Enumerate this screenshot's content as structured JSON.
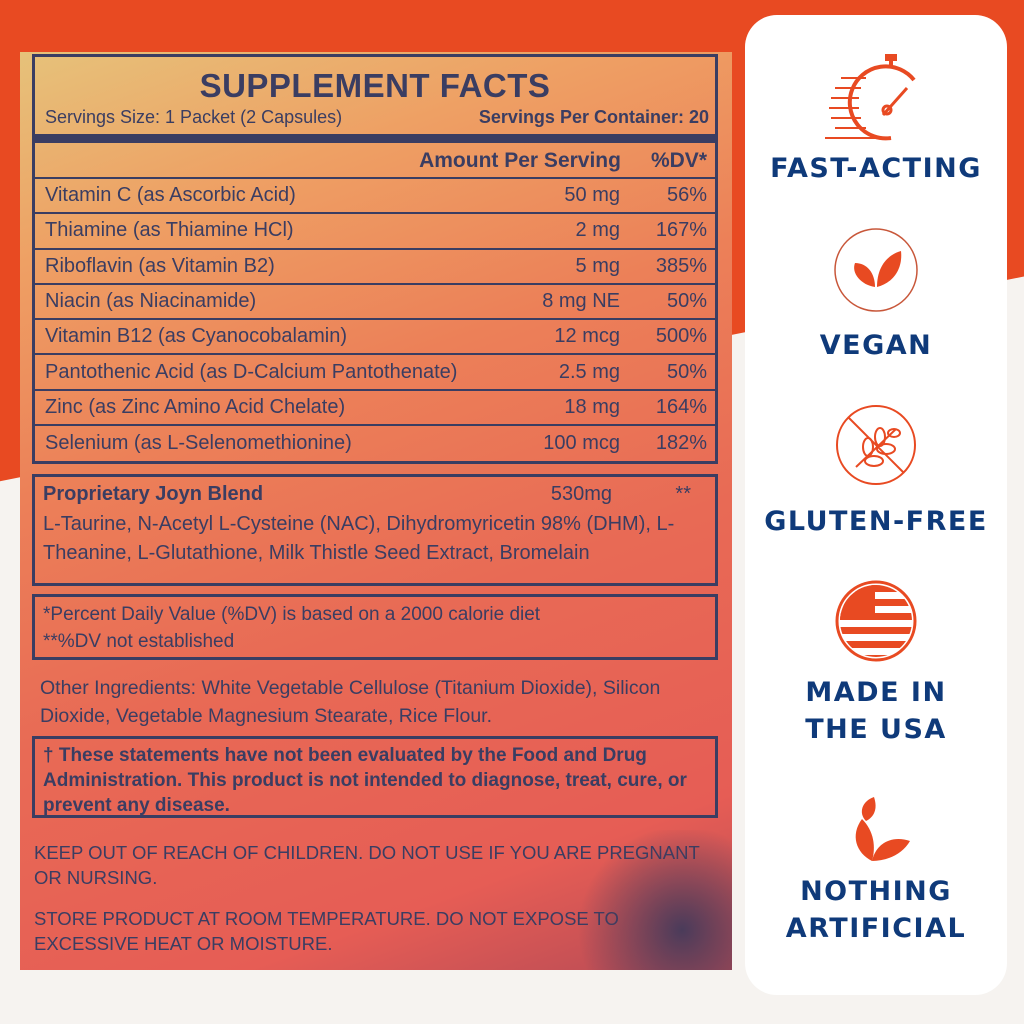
{
  "facts": {
    "title": "SUPPLEMENT FACTS",
    "serving_size": "Servings Size: 1 Packet (2 Capsules)",
    "servings_per_container": "Servings Per Container: 20",
    "col_amount": "Amount Per Serving",
    "col_dv": "%DV*",
    "rows": [
      {
        "name": "Vitamin C (as Ascorbic Acid)",
        "amount": "50 mg",
        "dv": "56%"
      },
      {
        "name": "Thiamine (as Thiamine HCl)",
        "amount": "2 mg",
        "dv": "167%"
      },
      {
        "name": "Riboflavin (as Vitamin B2)",
        "amount": "5 mg",
        "dv": "385%"
      },
      {
        "name": "Niacin (as Niacinamide)",
        "amount": "8 mg NE",
        "dv": "50%"
      },
      {
        "name": "Vitamin B12 (as Cyanocobalamin)",
        "amount": "12 mcg",
        "dv": "500%"
      },
      {
        "name": "Pantothenic Acid (as D-Calcium Pantothenate)",
        "amount": "2.5 mg",
        "dv": "50%"
      },
      {
        "name": "Zinc (as Zinc Amino Acid Chelate)",
        "amount": "18 mg",
        "dv": "164%"
      },
      {
        "name": "Selenium (as L-Selenomethionine)",
        "amount": "100 mcg",
        "dv": "182%"
      }
    ]
  },
  "blend": {
    "name": "Proprietary Joyn Blend",
    "amount": "530mg",
    "dv": "**",
    "ingredients": "L-Taurine, N-Acetyl L-Cysteine (NAC), Dihydromyricetin 98% (DHM), L-Theanine, L-Glutathione, Milk Thistle Seed Extract, Bromelain"
  },
  "dv_note1": "*Percent Daily Value (%DV) is based on a 2000 calorie diet",
  "dv_note2": "**%DV not established",
  "other_ingredients": "Other Ingredients: White Vegetable Cellulose (Titanium Dioxide), Silicon Dioxide, Vegetable Magnesium Stearate, Rice Flour.",
  "fda": "† These statements have not been evaluated by the Food and Drug Administration. This product is not intended to diagnose, treat, cure, or prevent any disease.",
  "warning1": "KEEP OUT OF REACH OF CHILDREN. DO NOT USE IF YOU ARE PREGNANT OR NURSING.",
  "warning2": "STORE PRODUCT AT ROOM TEMPERATURE. DO NOT EXPOSE TO EXCESSIVE HEAT OR MOISTURE.",
  "badges": [
    {
      "icon": "stopwatch-icon",
      "label": "FAST-ACTING"
    },
    {
      "icon": "leaf-icon",
      "label": "VEGAN"
    },
    {
      "icon": "no-wheat-icon",
      "label": "GLUTEN-FREE"
    },
    {
      "icon": "us-flag-icon",
      "label": "MADE IN THE USA"
    },
    {
      "icon": "leaves-icon",
      "label": "NOTHING ARTIFICIAL"
    }
  ],
  "colors": {
    "brand_orange": "#e84a22",
    "navy": "#0f3a7a",
    "label_ink": "#3a3d62"
  }
}
